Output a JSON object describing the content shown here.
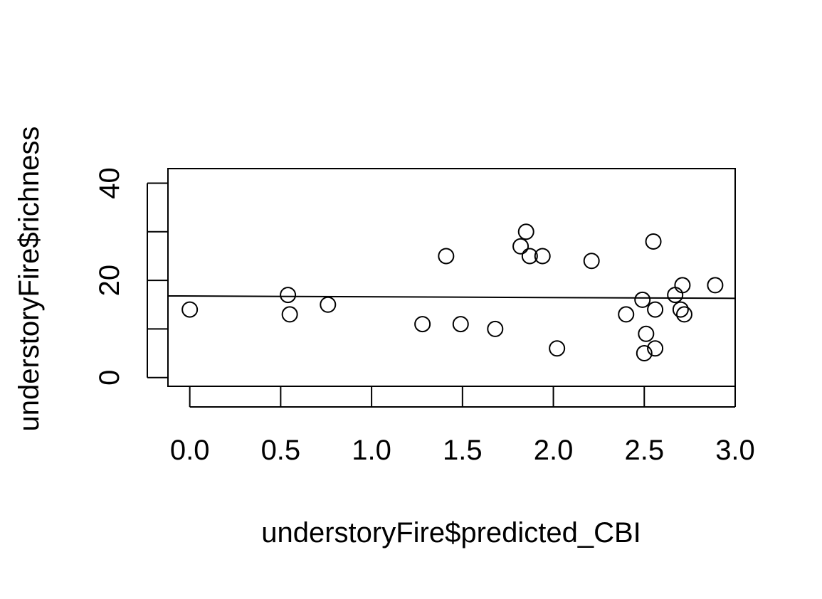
{
  "chart_data": {
    "type": "scatter",
    "title": "",
    "xlabel": "understoryFire$predicted_CBI",
    "ylabel": "understoryFire$richness",
    "xlim": [
      -0.12,
      3.0
    ],
    "ylim": [
      -1.8,
      43
    ],
    "x_ticks": [
      {
        "value": 0.0,
        "label": "0.0"
      },
      {
        "value": 0.5,
        "label": "0.5"
      },
      {
        "value": 1.0,
        "label": "1.0"
      },
      {
        "value": 1.5,
        "label": "1.5"
      },
      {
        "value": 2.0,
        "label": "2.0"
      },
      {
        "value": 2.5,
        "label": "2.5"
      },
      {
        "value": 3.0,
        "label": "3.0"
      }
    ],
    "y_ticks": [
      {
        "value": 0,
        "label": "0"
      },
      {
        "value": 10,
        "label": ""
      },
      {
        "value": 20,
        "label": "20"
      },
      {
        "value": 30,
        "label": ""
      },
      {
        "value": 40,
        "label": "40"
      }
    ],
    "points": [
      {
        "x": 0.0,
        "y": 14
      },
      {
        "x": 0.54,
        "y": 17
      },
      {
        "x": 0.55,
        "y": 13
      },
      {
        "x": 0.76,
        "y": 15
      },
      {
        "x": 1.28,
        "y": 11
      },
      {
        "x": 1.41,
        "y": 25
      },
      {
        "x": 1.49,
        "y": 11
      },
      {
        "x": 1.68,
        "y": 10
      },
      {
        "x": 1.82,
        "y": 27
      },
      {
        "x": 1.85,
        "y": 30
      },
      {
        "x": 1.87,
        "y": 25
      },
      {
        "x": 1.94,
        "y": 25
      },
      {
        "x": 2.02,
        "y": 6
      },
      {
        "x": 2.21,
        "y": 24
      },
      {
        "x": 2.4,
        "y": 13
      },
      {
        "x": 2.49,
        "y": 16
      },
      {
        "x": 2.5,
        "y": 5
      },
      {
        "x": 2.51,
        "y": 9
      },
      {
        "x": 2.55,
        "y": 28
      },
      {
        "x": 2.56,
        "y": 14
      },
      {
        "x": 2.56,
        "y": 6
      },
      {
        "x": 2.67,
        "y": 17
      },
      {
        "x": 2.7,
        "y": 14
      },
      {
        "x": 2.71,
        "y": 19
      },
      {
        "x": 2.72,
        "y": 13
      },
      {
        "x": 2.89,
        "y": 19
      }
    ],
    "regression_line": {
      "x": [
        -0.12,
        3.0
      ],
      "y": [
        16.8,
        16.3
      ]
    },
    "grid": false,
    "legend": "none"
  }
}
